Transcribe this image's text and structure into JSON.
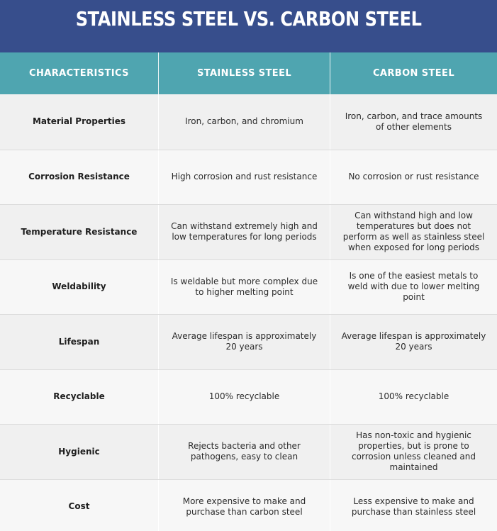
{
  "title": "STAINLESS STEEL VS. CARBON STEEL",
  "colors": {
    "title_bg": "#374e8c",
    "header_bg": "#4fa5b0",
    "row_dark": "#f0f0f0",
    "row_light": "#f7f7f7"
  },
  "headers": [
    "CHARACTERISTICS",
    "STAINLESS STEEL",
    "CARBON STEEL"
  ],
  "rows": [
    {
      "characteristic": "Material Properties",
      "stainless": "Iron, carbon, and chromium",
      "carbon": "Iron, carbon, and trace amounts of other elements"
    },
    {
      "characteristic": "Corrosion Resistance",
      "stainless": "High corrosion and rust resistance",
      "carbon": "No corrosion or rust resistance"
    },
    {
      "characteristic": "Temperature Resistance",
      "stainless": "Can withstand extremely high and low temperatures for long periods",
      "carbon": "Can withstand high and low temperatures but does not perform as well as stainless steel when exposed for long periods"
    },
    {
      "characteristic": "Weldability",
      "stainless": "Is weldable but more complex due to higher melting point",
      "carbon": "Is one of the easiest metals to weld with due to lower melting point"
    },
    {
      "characteristic": "Lifespan",
      "stainless": "Average lifespan is approximately 20 years",
      "carbon": "Average lifespan is approximately 20 years"
    },
    {
      "characteristic": "Recyclable",
      "stainless": "100% recyclable",
      "carbon": "100% recyclable"
    },
    {
      "characteristic": "Hygienic",
      "stainless": "Rejects bacteria and other pathogens, easy to clean",
      "carbon": "Has non-toxic and hygienic properties, but is prone to corrosion unless cleaned and maintained"
    },
    {
      "characteristic": "Cost",
      "stainless": "More expensive to make and purchase than carbon steel",
      "carbon": "Less expensive to make and purchase than stainless steel"
    }
  ]
}
